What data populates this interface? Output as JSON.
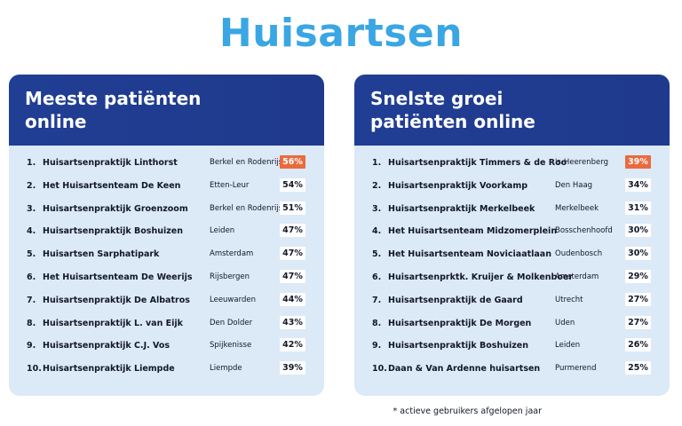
{
  "title": "Huisartsen",
  "footnote": "* actieve gebruikers afgelopen jaar",
  "colors": {
    "title": "#3aa6e3",
    "header": "#1f3a8c",
    "panel_bg": "#dce9f7",
    "highlight": "#ea6a3d"
  },
  "left_panel": {
    "title_line1": "Meeste patiënten",
    "title_line2": "online",
    "rows": [
      {
        "rank": "1.",
        "name": "Huisartsenpraktijk Linthorst",
        "city": "Berkel en Rodenrijs",
        "pct": "56%",
        "highlight": true
      },
      {
        "rank": "2.",
        "name": "Het Huisartsenteam De Keen",
        "city": "Etten-Leur",
        "pct": "54%",
        "highlight": false
      },
      {
        "rank": "3.",
        "name": "Huisartsenpraktijk Groenzoom",
        "city": "Berkel en Rodenrijs",
        "pct": "51%",
        "highlight": false
      },
      {
        "rank": "4.",
        "name": "Huisartsenpraktijk Boshuizen",
        "city": "Leiden",
        "pct": "47%",
        "highlight": false
      },
      {
        "rank": "5.",
        "name": "Huisartsen Sarphatipark",
        "city": "Amsterdam",
        "pct": "47%",
        "highlight": false
      },
      {
        "rank": "6.",
        "name": "Het Huisartsenteam De Weerijs",
        "city": "Rijsbergen",
        "pct": "47%",
        "highlight": false
      },
      {
        "rank": "7.",
        "name": "Huisartsenpraktijk De Albatros",
        "city": "Leeuwarden",
        "pct": "44%",
        "highlight": false
      },
      {
        "rank": "8.",
        "name": "Huisartsenpraktijk L. van Eijk",
        "city": "Den Dolder",
        "pct": "43%",
        "highlight": false
      },
      {
        "rank": "9.",
        "name": "Huisartsenpraktijk C.J. Vos",
        "city": "Spijkenisse",
        "pct": "42%",
        "highlight": false
      },
      {
        "rank": "10.",
        "name": "Huisartsenpraktijk Liempde",
        "city": "Liempde",
        "pct": "39%",
        "highlight": false
      }
    ]
  },
  "right_panel": {
    "title_line1": "Snelste groei",
    "title_line2": "patiënten online",
    "rows": [
      {
        "rank": "1.",
        "name": "Huisartsenpraktijk Timmers & de Roo",
        "city": "'s-Heerenberg",
        "pct": "39%",
        "highlight": true
      },
      {
        "rank": "2.",
        "name": "Huisartsenpraktijk Voorkamp",
        "city": "Den Haag",
        "pct": "34%",
        "highlight": false
      },
      {
        "rank": "3.",
        "name": "Huisartsenpraktijk Merkelbeek",
        "city": "Merkelbeek",
        "pct": "31%",
        "highlight": false
      },
      {
        "rank": "4.",
        "name": "Het Huisartsenteam Midzomerplein",
        "city": "Bosschenhoofd",
        "pct": "30%",
        "highlight": false
      },
      {
        "rank": "5.",
        "name": "Het Huisartsenteam Noviciaatlaan",
        "city": "Oudenbosch",
        "pct": "30%",
        "highlight": false
      },
      {
        "rank": "6.",
        "name": "Huisartsenprktk. Kruijer & Molkenboer",
        "city": "Amsterdam",
        "pct": "29%",
        "highlight": false
      },
      {
        "rank": "7.",
        "name": "Huisartsenpraktijk de Gaard",
        "city": "Utrecht",
        "pct": "27%",
        "highlight": false
      },
      {
        "rank": "8.",
        "name": "Huisartsenpraktijk De Morgen",
        "city": "Uden",
        "pct": "27%",
        "highlight": false
      },
      {
        "rank": "9.",
        "name": "Huisartsenpraktijk Boshuizen",
        "city": "Leiden",
        "pct": "26%",
        "highlight": false
      },
      {
        "rank": "10.",
        "name": "Daan & Van Ardenne huisartsen",
        "city": "Purmerend",
        "pct": "25%",
        "highlight": false
      }
    ]
  }
}
